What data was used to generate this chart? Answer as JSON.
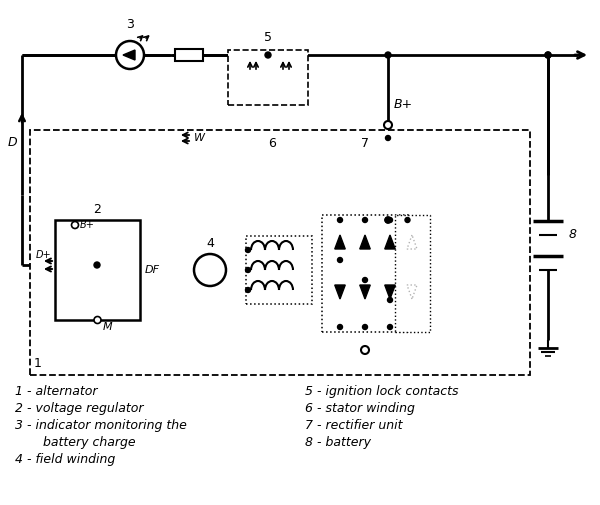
{
  "bg_color": "#ffffff",
  "line_color": "#000000",
  "legend_items_left": [
    "1 - alternator",
    "2 - voltage regulator",
    "3 - indicator monitoring the",
    "       battery charge",
    "4 - field winding"
  ],
  "legend_items_right": [
    "5 - ignition lock contacts",
    "6 - stator winding",
    "7 - rectifier unit",
    "8 - battery"
  ]
}
